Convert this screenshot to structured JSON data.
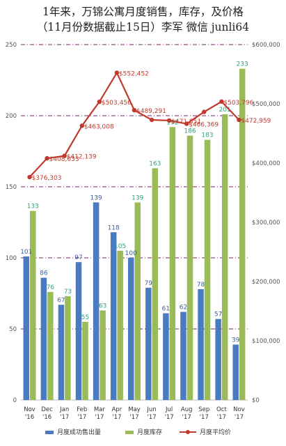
{
  "title": {
    "line1": "1年来，万锦公寓月度销售，库存，及价格",
    "line2": "（11月份数据截止15日）李军 微信 junli64"
  },
  "chart_data": {
    "type": "bar",
    "categories": [
      [
        "Nov",
        "'16"
      ],
      [
        "Dec",
        "'16"
      ],
      [
        "Jan",
        "'17"
      ],
      [
        "Feb",
        "'17"
      ],
      [
        "Mar",
        "'17"
      ],
      [
        "Apr",
        "'17"
      ],
      [
        "May",
        "'17"
      ],
      [
        "Jun",
        "'17"
      ],
      [
        "Jul",
        "'17"
      ],
      [
        "Aug",
        "'17"
      ],
      [
        "Sep",
        "'17"
      ],
      [
        "Oct",
        "'17"
      ],
      [
        "Nov",
        "'17"
      ]
    ],
    "series": [
      {
        "name": "月度成功售出量",
        "type": "bar",
        "axis": "left",
        "color": "#4a7bc0",
        "values": [
          101,
          86,
          67,
          97,
          139,
          118,
          100,
          79,
          61,
          62,
          78,
          57,
          39
        ]
      },
      {
        "name": "月度库存",
        "type": "bar",
        "axis": "left",
        "color": "#9bbb59",
        "values": [
          133,
          76,
          73,
          55,
          63,
          105,
          139,
          163,
          192,
          186,
          183,
          201,
          233
        ]
      },
      {
        "name": "月度平均价",
        "type": "line",
        "axis": "right",
        "color": "#c0392b",
        "values": [
          376303,
          408033,
          412139,
          463008,
          503456,
          552452,
          489291,
          472959,
          471851,
          466369,
          486369,
          503796,
          472959
        ],
        "labels": [
          "$376,303",
          "$408,033",
          "$412,139",
          "$463,008",
          "$503,456",
          "$552,452",
          "$489,291",
          "",
          "$471,851",
          "$466,369",
          "",
          "$503,796",
          "$472,959"
        ]
      }
    ],
    "bar_labels": {
      "blue": [
        "101",
        "86",
        "67",
        "97",
        "139",
        "118",
        "100",
        "79",
        "61",
        "62",
        "78",
        "57",
        "39"
      ],
      "green": [
        "133",
        "76",
        "73",
        "55",
        "63",
        "105",
        "139",
        "163",
        "192",
        "186",
        "183",
        "201",
        "233"
      ]
    },
    "ylim_left": [
      0,
      250
    ],
    "yticks_left": [
      0,
      50,
      100,
      150,
      200,
      250
    ],
    "ylim_right": [
      0,
      600000
    ],
    "yticks_right": [
      "$0",
      "$100,000",
      "$200,000",
      "$300,000",
      "$400,000",
      "$500,000",
      "$600,000"
    ],
    "grid": true,
    "legend_position": "bottom"
  }
}
